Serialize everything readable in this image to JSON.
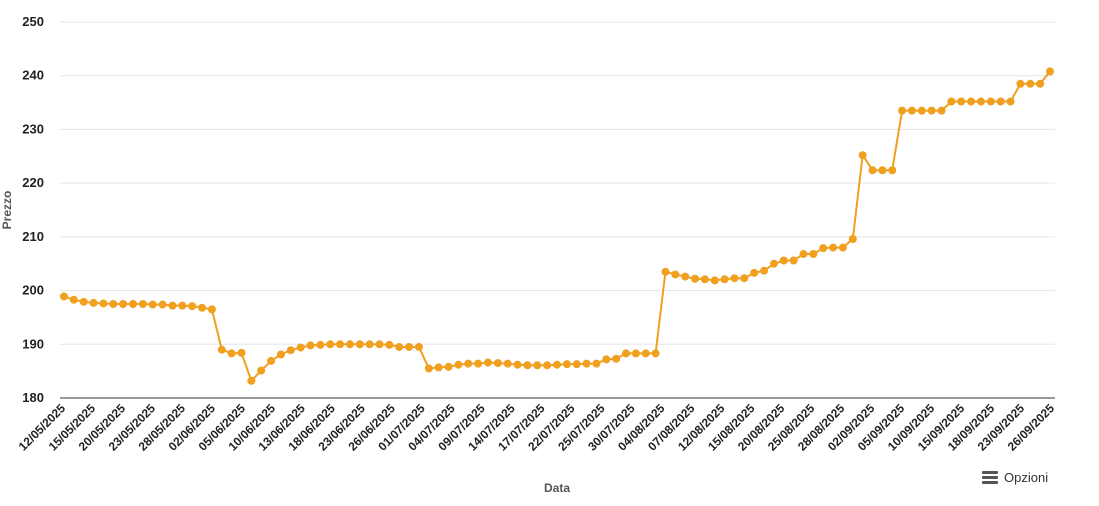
{
  "chart_data": {
    "type": "line",
    "title": "",
    "xlabel": "Data",
    "ylabel": "Prezzo",
    "ylim": [
      180,
      250
    ],
    "yticks": [
      180,
      190,
      200,
      210,
      220,
      230,
      240,
      250
    ],
    "grid": true,
    "legend": "none",
    "line_color": "#f0a01e",
    "x_tick_labels": [
      "12/05/2025",
      "15/05/2025",
      "20/05/2025",
      "23/05/2025",
      "28/05/2025",
      "02/06/2025",
      "05/06/2025",
      "10/06/2025",
      "13/06/2025",
      "18/06/2025",
      "23/06/2025",
      "26/06/2025",
      "01/07/2025",
      "04/07/2025",
      "09/07/2025",
      "14/07/2025",
      "17/07/2025",
      "22/07/2025",
      "25/07/2025",
      "30/07/2025",
      "04/08/2025",
      "07/08/2025",
      "12/08/2025",
      "15/08/2025",
      "20/08/2025",
      "25/08/2025",
      "28/08/2025",
      "02/09/2025",
      "05/09/2025",
      "10/09/2025",
      "15/09/2025",
      "18/09/2025",
      "23/09/2025",
      "26/09/2025"
    ],
    "series": [
      {
        "values": [
          198.9,
          198.3,
          197.9,
          197.7,
          197.6,
          197.5,
          197.5,
          197.5,
          197.5,
          197.4,
          197.4,
          197.2,
          197.2,
          197.1,
          196.8,
          196.5,
          189.0,
          188.3,
          188.4,
          183.2,
          185.1,
          186.9,
          188.1,
          188.9,
          189.4,
          189.8,
          189.9,
          190.0,
          190.0,
          190.0,
          190.0,
          190.0,
          190.0,
          189.9,
          189.5,
          189.5,
          189.5,
          185.5,
          185.7,
          185.8,
          186.2,
          186.4,
          186.4,
          186.6,
          186.5,
          186.4,
          186.2,
          186.1,
          186.1,
          186.1,
          186.2,
          186.3,
          186.3,
          186.4,
          186.4,
          187.2,
          187.3,
          188.3,
          188.3,
          188.3,
          188.3,
          203.5,
          203.0,
          202.6,
          202.2,
          202.1,
          201.9,
          202.1,
          202.3,
          202.3,
          203.3,
          203.7,
          205.0,
          205.6,
          205.6,
          206.8,
          206.8,
          207.9,
          208.0,
          208.0,
          209.6,
          225.2,
          222.4,
          222.4,
          222.4,
          233.5,
          233.5,
          233.5,
          233.5,
          233.5,
          235.2,
          235.2,
          235.2,
          235.2,
          235.2,
          235.2,
          235.2,
          238.5,
          238.5,
          238.5,
          240.8
        ]
      }
    ]
  },
  "options_button": {
    "label": "Opzioni",
    "icon": "hamburger-menu-icon"
  }
}
